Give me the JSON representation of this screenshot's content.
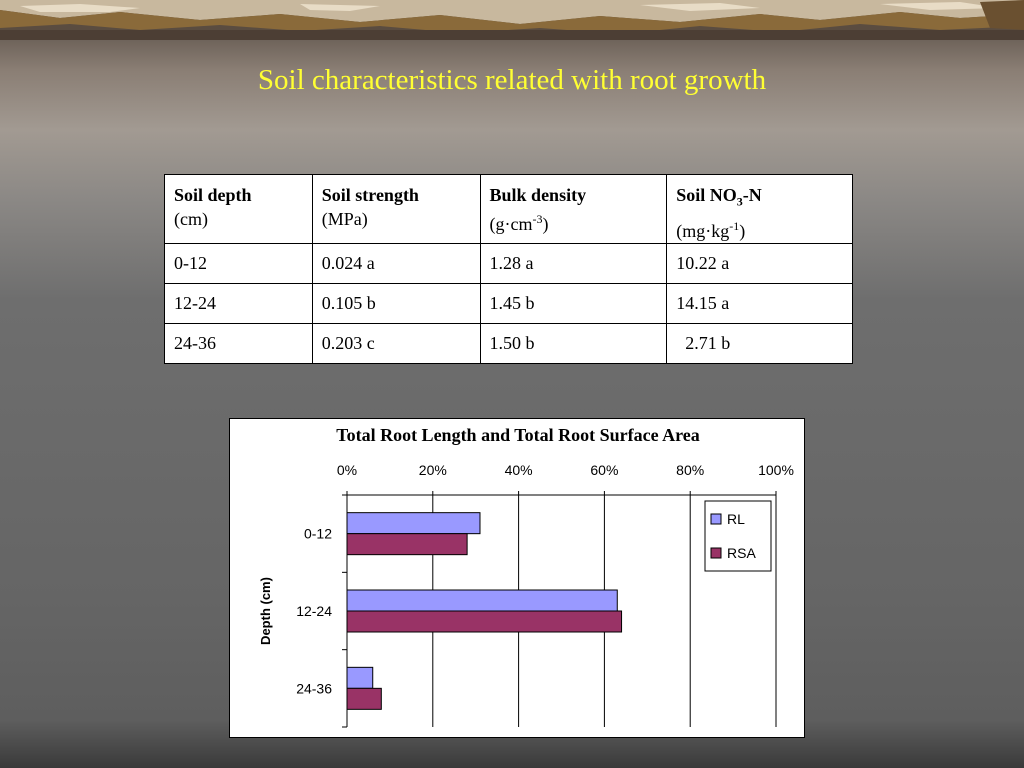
{
  "slide": {
    "title": "Soil characteristics related with root growth"
  },
  "table": {
    "headers": [
      {
        "name": "Soil depth",
        "unit": "(cm)"
      },
      {
        "name": "Soil strength",
        "unit": "(MPa)"
      },
      {
        "name": "Bulk density",
        "unit_pre": "(g·cm",
        "unit_sup": "-3",
        "unit_post": ")"
      },
      {
        "name_pre": "Soil NO",
        "name_sub": "3",
        "name_post": "-N",
        "unit_pre": "(mg·kg",
        "unit_sup": "-1",
        "unit_post": ")"
      }
    ],
    "rows": [
      [
        "0-12",
        "0.024 a",
        "1.28 a",
        "10.22 a"
      ],
      [
        "12-24",
        "0.105 b",
        "1.45 b",
        "14.15 a"
      ],
      [
        "24-36",
        "0.203 c",
        "1.50 b",
        "  2.71 b"
      ]
    ]
  },
  "chart_data": {
    "type": "bar",
    "orientation": "horizontal",
    "title": "Total Root Length and Total Root Surface Area",
    "ylabel": "Depth (cm)",
    "xlabel": "",
    "categories": [
      "0-12",
      "12-24",
      "24-36"
    ],
    "x_ticks": [
      "0%",
      "20%",
      "40%",
      "60%",
      "80%",
      "100%"
    ],
    "xlim": [
      0,
      100
    ],
    "grid": true,
    "legend_position": "top-right",
    "series": [
      {
        "name": "RL",
        "values": [
          31,
          63,
          6
        ],
        "color": "#9999ff"
      },
      {
        "name": "RSA",
        "values": [
          28,
          64,
          8
        ],
        "color": "#993366"
      }
    ]
  }
}
